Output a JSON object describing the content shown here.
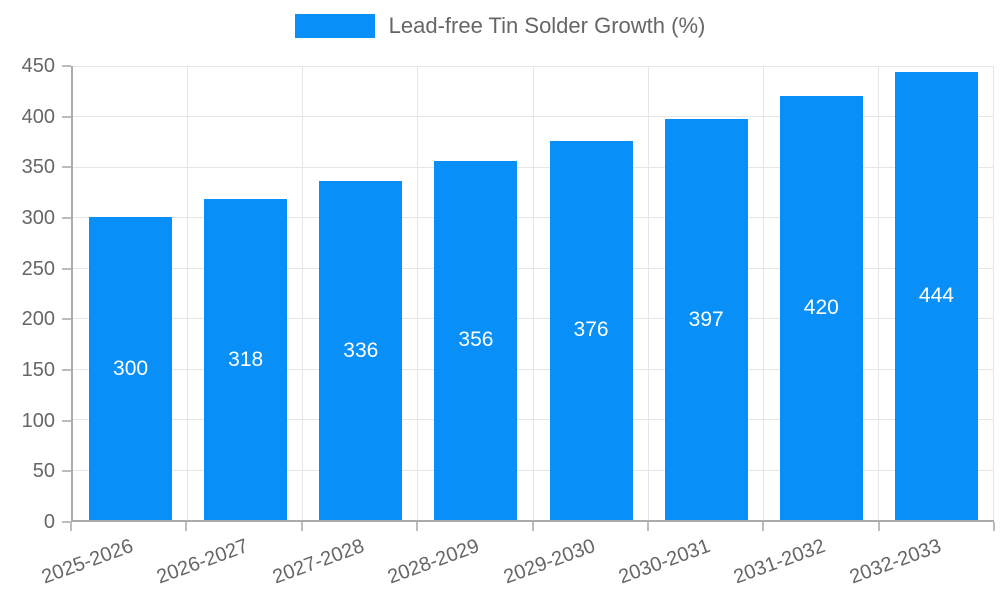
{
  "legend": {
    "label": "Lead-free Tin Solder Growth (%)"
  },
  "chart_data": {
    "type": "bar",
    "title": "",
    "legend_entries": [
      "Lead-free Tin Solder Growth (%)"
    ],
    "legend_position": "top",
    "categories": [
      "2025-2026",
      "2026-2027",
      "2027-2028",
      "2028-2029",
      "2029-2030",
      "2030-2031",
      "2031-2032",
      "2032-2033"
    ],
    "values": [
      300,
      318,
      336,
      356,
      376,
      397,
      420,
      444
    ],
    "value_labels": [
      "300",
      "318",
      "336",
      "356",
      "376",
      "397",
      "420",
      "444"
    ],
    "xlabel": "",
    "ylabel": "",
    "ylim": [
      0,
      450
    ],
    "yticks": [
      0,
      50,
      100,
      150,
      200,
      250,
      300,
      350,
      400,
      450
    ],
    "grid": true,
    "x_label_rotation_deg": -20,
    "colors": {
      "bar": "#0890f8",
      "grid": "#e6e6e6",
      "axis": "#ababab",
      "tick_text": "#666666",
      "legend_text": "#666666",
      "value_label": "#ffffff",
      "background": "#ffffff"
    }
  }
}
